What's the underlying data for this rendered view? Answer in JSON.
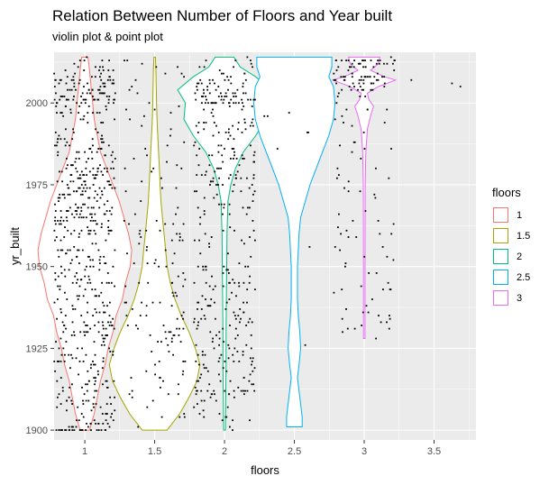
{
  "title": "Relation Between Number of Floors and Year built",
  "subtitle": "violin plot & point plot",
  "chart_data": {
    "type": "violin",
    "overlay": "jittered points",
    "title": "Relation Between Number of Floors and Year built",
    "subtitle": "violin plot & point plot",
    "xlabel": "floors",
    "ylabel": "yr_built",
    "xlim": [
      0.78,
      3.8
    ],
    "ylim": [
      1897,
      2015.5
    ],
    "x_ticks": [
      1,
      1.5,
      2,
      2.5,
      3,
      3.5
    ],
    "x_tick_labels": [
      "1",
      "1.5",
      "2",
      "2.5",
      "3",
      "3.5"
    ],
    "y_ticks": [
      1900,
      1925,
      1950,
      1975,
      2000
    ],
    "y_tick_labels": [
      "1900",
      "1925",
      "1950",
      "1975",
      "2000"
    ],
    "grid": true,
    "legend_title": "floors",
    "legend_position": "right",
    "series": [
      {
        "name": "1",
        "color": "#F8766D",
        "x": 1,
        "yrange": [
          1900,
          2014
        ],
        "profile": [
          [
            1900,
            0.03
          ],
          [
            1905,
            0.06
          ],
          [
            1910,
            0.08
          ],
          [
            1915,
            0.1
          ],
          [
            1920,
            0.13
          ],
          [
            1925,
            0.15
          ],
          [
            1930,
            0.18
          ],
          [
            1935,
            0.2
          ],
          [
            1940,
            0.24
          ],
          [
            1945,
            0.26
          ],
          [
            1950,
            0.29
          ],
          [
            1955,
            0.3
          ],
          [
            1960,
            0.28
          ],
          [
            1965,
            0.25
          ],
          [
            1970,
            0.22
          ],
          [
            1975,
            0.18
          ],
          [
            1980,
            0.14
          ],
          [
            1985,
            0.1
          ],
          [
            1990,
            0.08
          ],
          [
            1995,
            0.06
          ],
          [
            2000,
            0.05
          ],
          [
            2005,
            0.04
          ],
          [
            2010,
            0.03
          ],
          [
            2014,
            0.02
          ]
        ]
      },
      {
        "name": "1.5",
        "color": "#A3A500",
        "x": 1.5,
        "yrange": [
          1900,
          2014
        ],
        "profile": [
          [
            1900,
            0.08
          ],
          [
            1905,
            0.16
          ],
          [
            1910,
            0.22
          ],
          [
            1915,
            0.27
          ],
          [
            1920,
            0.29
          ],
          [
            1925,
            0.26
          ],
          [
            1930,
            0.22
          ],
          [
            1935,
            0.17
          ],
          [
            1940,
            0.13
          ],
          [
            1945,
            0.1
          ],
          [
            1950,
            0.08
          ],
          [
            1955,
            0.07
          ],
          [
            1960,
            0.06
          ],
          [
            1965,
            0.05
          ],
          [
            1970,
            0.04
          ],
          [
            1975,
            0.035
          ],
          [
            1980,
            0.03
          ],
          [
            1985,
            0.025
          ],
          [
            1990,
            0.02
          ],
          [
            1995,
            0.015
          ],
          [
            2000,
            0.012
          ],
          [
            2005,
            0.01
          ],
          [
            2010,
            0.008
          ],
          [
            2014,
            0.005
          ]
        ]
      },
      {
        "name": "2",
        "color": "#00BF7D",
        "x": 2,
        "yrange": [
          1900,
          2014
        ],
        "profile": [
          [
            1900,
            0.006
          ],
          [
            1910,
            0.008
          ],
          [
            1920,
            0.01
          ],
          [
            1930,
            0.01
          ],
          [
            1940,
            0.012
          ],
          [
            1950,
            0.014
          ],
          [
            1960,
            0.016
          ],
          [
            1970,
            0.022
          ],
          [
            1975,
            0.04
          ],
          [
            1980,
            0.07
          ],
          [
            1985,
            0.12
          ],
          [
            1990,
            0.2
          ],
          [
            1995,
            0.26
          ],
          [
            2000,
            0.25
          ],
          [
            2004,
            0.3
          ],
          [
            2008,
            0.2
          ],
          [
            2011,
            0.1
          ],
          [
            2014,
            0.06
          ]
        ]
      },
      {
        "name": "2.5",
        "color": "#00B0F6",
        "x": 2.5,
        "yrange": [
          1901,
          2014
        ],
        "profile": [
          [
            1901,
            0.05
          ],
          [
            1904,
            0.05
          ],
          [
            1908,
            0.04
          ],
          [
            1912,
            0.03
          ],
          [
            1916,
            0.02
          ],
          [
            1920,
            0.03
          ],
          [
            1925,
            0.04
          ],
          [
            1930,
            0.035
          ],
          [
            1935,
            0.025
          ],
          [
            1940,
            0.02
          ],
          [
            1945,
            0.02
          ],
          [
            1950,
            0.02
          ],
          [
            1955,
            0.025
          ],
          [
            1960,
            0.03
          ],
          [
            1965,
            0.04
          ],
          [
            1970,
            0.07
          ],
          [
            1975,
            0.1
          ],
          [
            1980,
            0.14
          ],
          [
            1985,
            0.18
          ],
          [
            1990,
            0.22
          ],
          [
            1995,
            0.25
          ],
          [
            2000,
            0.26
          ],
          [
            2005,
            0.25
          ],
          [
            2008,
            0.22
          ],
          [
            2011,
            0.24
          ],
          [
            2014,
            0.24
          ]
        ]
      },
      {
        "name": "3",
        "color": "#E76BF3",
        "x": 3,
        "yrange": [
          1928,
          2014
        ],
        "profile": [
          [
            1928,
            0.005
          ],
          [
            1950,
            0.005
          ],
          [
            1975,
            0.006
          ],
          [
            1985,
            0.01
          ],
          [
            1992,
            0.02
          ],
          [
            1996,
            0.04
          ],
          [
            1999,
            0.06
          ],
          [
            2001,
            0.03
          ],
          [
            2003,
            0.02
          ],
          [
            2005,
            0.09
          ],
          [
            2007,
            0.2
          ],
          [
            2008,
            0.13
          ],
          [
            2010,
            0.04
          ],
          [
            2012,
            0.09
          ],
          [
            2014,
            0.1
          ]
        ]
      }
    ],
    "point_groups": [
      {
        "floors": 1,
        "count": 650,
        "yrange": [
          1900,
          2014
        ],
        "clusters": [
          [
            1912,
            40
          ],
          [
            1955,
            50
          ],
          [
            1975,
            30
          ],
          [
            2003,
            12
          ]
        ]
      },
      {
        "floors": 1.5,
        "count": 150,
        "yrange": [
          1900,
          2014
        ],
        "clusters": [
          [
            1920,
            40
          ],
          [
            1945,
            40
          ]
        ]
      },
      {
        "floors": 2,
        "count": 400,
        "yrange": [
          1900,
          2014
        ],
        "clusters": [
          [
            2003,
            8
          ],
          [
            1985,
            20
          ],
          [
            1930,
            40
          ]
        ]
      },
      {
        "floors": 2.5,
        "count": 8,
        "yrange": [
          1905,
          2014
        ],
        "clusters": [
          [
            1990,
            30
          ]
        ]
      },
      {
        "floors": 3,
        "count": 160,
        "yrange": [
          1928,
          2014
        ],
        "clusters": [
          [
            2006,
            5
          ],
          [
            2012,
            3
          ]
        ]
      },
      {
        "floors": 3.5,
        "count": 3,
        "yrange": [
          2000,
          2010
        ],
        "clusters": [
          [
            2005,
            5
          ]
        ]
      }
    ]
  }
}
